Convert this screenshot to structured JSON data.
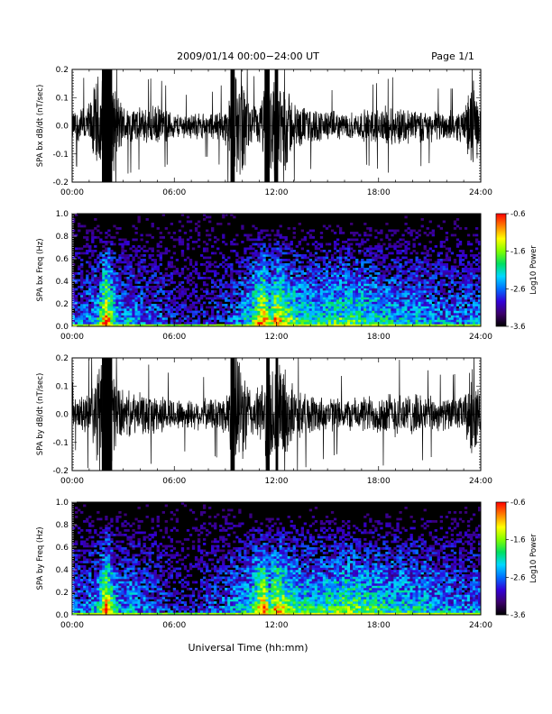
{
  "header": {
    "title": "2009/01/14  00:00−24:00 UT",
    "page": "Page 1/1"
  },
  "footer": {
    "xlabel": "Universal Time (hh:mm)"
  },
  "colors": {
    "trace": "#000000",
    "colorbar_stops": [
      "#000000",
      "#3b006a",
      "#3200d8",
      "#0070ff",
      "#00d8ff",
      "#00e060",
      "#80ff00",
      "#ffff00",
      "#ff8000",
      "#ff0000"
    ]
  },
  "chart_data": [
    {
      "type": "line",
      "name": "bx-waveform",
      "ylabel": "SPA bx dB/dt (nT/sec)",
      "xlim": [
        "00:00",
        "24:00"
      ],
      "ylim": [
        -0.2,
        0.2
      ],
      "xticks": [
        "00:00",
        "06:00",
        "12:00",
        "18:00",
        "24:00"
      ],
      "yticks": [
        "-0.2",
        "-0.1",
        "0.0",
        "0.1",
        "0.2"
      ],
      "envelope": {
        "x_hours": [
          0,
          0.5,
          1,
          1.5,
          1.8,
          2.3,
          3,
          4,
          5,
          6,
          7,
          8,
          9,
          9.5,
          10,
          10.5,
          11,
          11.5,
          12,
          12.5,
          13,
          14,
          15,
          16,
          17,
          18,
          19,
          20,
          21,
          22,
          23,
          23.5,
          24
        ],
        "amplitude": [
          0.06,
          0.07,
          0.09,
          0.2,
          0.2,
          0.2,
          0.08,
          0.07,
          0.08,
          0.05,
          0.05,
          0.05,
          0.07,
          0.2,
          0.2,
          0.08,
          0.08,
          0.2,
          0.2,
          0.2,
          0.09,
          0.07,
          0.06,
          0.05,
          0.06,
          0.07,
          0.08,
          0.07,
          0.06,
          0.06,
          0.06,
          0.2,
          0.06
        ]
      },
      "saturated_intervals": [
        [
          1.75,
          2.35
        ],
        [
          9.3,
          9.55
        ],
        [
          11.3,
          11.6
        ],
        [
          11.9,
          12.1
        ]
      ]
    },
    {
      "type": "heatmap",
      "name": "bx-spectrogram",
      "ylabel": "SPA bx Freq (Hz)",
      "xlim": [
        "00:00",
        "24:00"
      ],
      "ylim": [
        0.0,
        1.0
      ],
      "xticks": [
        "00:00",
        "06:00",
        "12:00",
        "18:00",
        "24:00"
      ],
      "yticks": [
        "0.0",
        "0.2",
        "0.4",
        "0.6",
        "0.8",
        "1.0"
      ],
      "colorbar_label": "Log10 Power",
      "colorbar_ticks": [
        "-0.6",
        "-1.6",
        "-2.6",
        "-3.6"
      ],
      "colorbar_range": [
        -3.6,
        -0.6
      ],
      "activity": {
        "x_hours": [
          0,
          1,
          1.5,
          2,
          2.5,
          3,
          3.5,
          4,
          5,
          6,
          7,
          8,
          9,
          10,
          10.5,
          11,
          11.3,
          11.6,
          12,
          12.5,
          13,
          14,
          15,
          16,
          17,
          18,
          19,
          20,
          21,
          22,
          23,
          24
        ],
        "level": [
          0.3,
          0.35,
          0.45,
          1.0,
          0.5,
          0.35,
          0.45,
          0.35,
          0.3,
          0.2,
          0.15,
          0.2,
          0.25,
          0.4,
          0.5,
          0.85,
          0.95,
          0.6,
          0.9,
          0.7,
          0.6,
          0.5,
          0.55,
          0.6,
          0.55,
          0.5,
          0.45,
          0.45,
          0.4,
          0.35,
          0.35,
          0.4
        ]
      }
    },
    {
      "type": "line",
      "name": "by-waveform",
      "ylabel": "SPA by dB/dt (nT/sec)",
      "xlim": [
        "00:00",
        "24:00"
      ],
      "ylim": [
        -0.2,
        0.2
      ],
      "xticks": [
        "00:00",
        "06:00",
        "12:00",
        "18:00",
        "24:00"
      ],
      "yticks": [
        "-0.2",
        "-0.1",
        "0.0",
        "0.1",
        "0.2"
      ],
      "envelope": {
        "x_hours": [
          0,
          0.5,
          1,
          1.5,
          1.8,
          2.3,
          3,
          4,
          5,
          6,
          7,
          8,
          9,
          9.5,
          10,
          10.5,
          11,
          11.5,
          12,
          12.5,
          13,
          14,
          15,
          16,
          17,
          18,
          19,
          20,
          21,
          22,
          23,
          23.5,
          24
        ],
        "amplitude": [
          0.05,
          0.07,
          0.09,
          0.2,
          0.2,
          0.2,
          0.09,
          0.08,
          0.08,
          0.06,
          0.06,
          0.06,
          0.08,
          0.2,
          0.2,
          0.1,
          0.1,
          0.2,
          0.2,
          0.2,
          0.1,
          0.08,
          0.07,
          0.06,
          0.07,
          0.08,
          0.09,
          0.08,
          0.07,
          0.06,
          0.07,
          0.2,
          0.06
        ]
      },
      "saturated_intervals": [
        [
          1.75,
          2.35
        ],
        [
          9.3,
          9.55
        ],
        [
          11.4,
          11.6
        ],
        [
          11.95,
          12.1
        ]
      ]
    },
    {
      "type": "heatmap",
      "name": "by-spectrogram",
      "ylabel": "SPA by Freq (Hz)",
      "xlim": [
        "00:00",
        "24:00"
      ],
      "ylim": [
        0.0,
        1.0
      ],
      "xticks": [
        "00:00",
        "06:00",
        "12:00",
        "18:00",
        "24:00"
      ],
      "yticks": [
        "0.0",
        "0.2",
        "0.4",
        "0.6",
        "0.8",
        "1.0"
      ],
      "colorbar_label": "Log10 Power",
      "colorbar_ticks": [
        "-0.6",
        "-1.6",
        "-2.6",
        "-3.6"
      ],
      "colorbar_range": [
        -3.6,
        -0.6
      ],
      "activity": {
        "x_hours": [
          0,
          1,
          1.5,
          2,
          2.5,
          3,
          3.5,
          4,
          5,
          6,
          7,
          8,
          9,
          10,
          10.5,
          11,
          11.3,
          11.6,
          12,
          12.5,
          13,
          14,
          15,
          16,
          17,
          18,
          19,
          20,
          21,
          22,
          23,
          24
        ],
        "level": [
          0.3,
          0.35,
          0.45,
          1.0,
          0.5,
          0.35,
          0.45,
          0.35,
          0.3,
          0.2,
          0.15,
          0.25,
          0.35,
          0.45,
          0.55,
          0.85,
          0.95,
          0.6,
          0.9,
          0.7,
          0.6,
          0.5,
          0.55,
          0.65,
          0.6,
          0.55,
          0.5,
          0.5,
          0.45,
          0.4,
          0.35,
          0.4
        ]
      }
    }
  ]
}
